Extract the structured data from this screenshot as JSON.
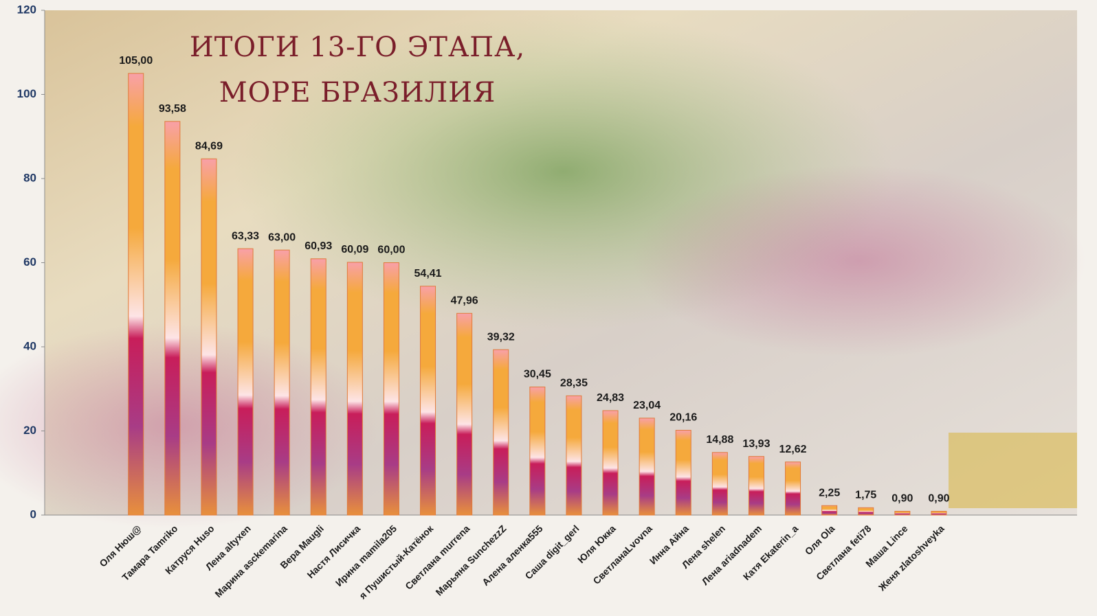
{
  "chart_data": {
    "type": "bar",
    "title": "Итоги 13-го этапа, море Бразилия",
    "categories": [
      "Оля Нюш@",
      "Тамара Tamriko",
      "Катруся Huso",
      "Лена altyxen",
      "Марина asckemarina",
      "Вера Maugli",
      "Настя Лисичка",
      "Ирина mamila205",
      "я Пушистый-Катёнок",
      "Светлана murrena",
      "Марьяна SunchezzZ",
      "Алена аленка555",
      "Саша digit_gerl",
      "Юля Юкка",
      "СветланаLvovna",
      "Инна Айна",
      "Лена shelen",
      "Лена ariadnadem",
      "Катя Ekaterin_a",
      "Оля Ola",
      "Светлана feti78",
      "Маша Lince",
      "Женя zlatoshveyka"
    ],
    "values": [
      105.0,
      93.58,
      84.69,
      63.33,
      63.0,
      60.93,
      60.09,
      60.0,
      54.41,
      47.96,
      39.32,
      30.45,
      28.35,
      24.83,
      23.04,
      20.16,
      14.88,
      13.93,
      12.62,
      2.25,
      1.75,
      0.9,
      0.9
    ],
    "value_labels": [
      "105,00",
      "93,58",
      "84,69",
      "63,33",
      "63,00",
      "60,93",
      "60,09",
      "60,00",
      "54,41",
      "47,96",
      "39,32",
      "30,45",
      "28,35",
      "24,83",
      "23,04",
      "20,16",
      "14,88",
      "13,93",
      "12,62",
      "2,25",
      "1,75",
      "0,90",
      "0,90"
    ],
    "color": "#f5a93c",
    "ylim": [
      0,
      120
    ],
    "yticks": [
      0,
      20,
      40,
      60,
      80,
      100,
      120
    ]
  }
}
